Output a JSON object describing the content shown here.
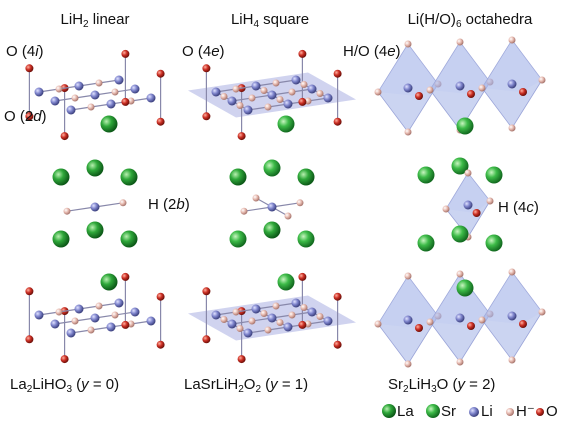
{
  "columns": [
    {
      "title": [
        "LiH",
        "2",
        " linear"
      ],
      "labels": [
        [
          "O (4",
          "i",
          ")"
        ],
        [
          "O (2",
          "d",
          ")"
        ],
        [
          "H (2",
          "b",
          ")"
        ]
      ],
      "compound": [
        [
          "La",
          "2",
          "LiHO",
          "3",
          " (",
          "y",
          " = 0)"
        ]
      ]
    },
    {
      "title": [
        "LiH",
        "4",
        " square"
      ],
      "labels": [
        [
          "O (4",
          "e",
          ")"
        ]
      ],
      "compound": [
        [
          "LaSrLiH",
          "2",
          "O",
          "2",
          " (",
          "y",
          " = 1)"
        ]
      ]
    },
    {
      "title": [
        "Li(H/O)",
        "6",
        " octahedra"
      ],
      "labels": [
        [
          "H/O (4",
          "e",
          ")"
        ],
        [
          "H (4",
          "c",
          ")"
        ]
      ],
      "compound": [
        [
          "Sr",
          "2",
          "LiH",
          "3",
          "O (",
          "y",
          " = 2)"
        ]
      ]
    }
  ],
  "legend": [
    "La",
    "Sr",
    "Li",
    "H⁻",
    "O"
  ]
}
